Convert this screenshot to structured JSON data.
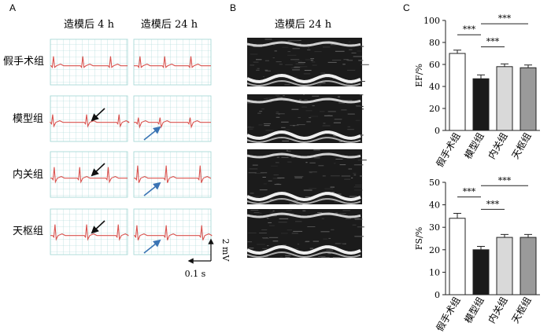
{
  "panel_a": {
    "letter": "A",
    "columns": [
      "造模后 4 h",
      "造模后 24 h"
    ],
    "rows": [
      "假手术组",
      "模型组",
      "内关组",
      "天枢组"
    ],
    "scale_voltage": "2 mV",
    "scale_time": "0.1 s",
    "colors": {
      "grid": "#9fd6d3",
      "trace": "#d9534f",
      "arrow_4h": "#111111",
      "arrow_24h": "#3a74b4"
    }
  },
  "panel_b": {
    "letter": "B",
    "title": "造模后 24 h"
  },
  "panel_c": {
    "letter": "C"
  },
  "chart_data": [
    {
      "type": "bar",
      "categories": [
        "假手术组",
        "模型组",
        "内关组",
        "天枢组"
      ],
      "values": [
        70,
        47,
        58,
        57
      ],
      "errors": [
        3,
        3.5,
        2.5,
        2.5
      ],
      "bar_colors": [
        "#ffffff",
        "#1a1a1a",
        "#d9d9d9",
        "#9a9a9a"
      ],
      "ylabel": "EF/%",
      "ylim": [
        0,
        100
      ],
      "yticks": [
        0,
        20,
        40,
        60,
        80,
        100
      ],
      "significance": [
        {
          "from": 0,
          "to": 1,
          "label": "***"
        },
        {
          "from": 1,
          "to": 2,
          "label": "***"
        },
        {
          "from": 1,
          "to": 3,
          "label": "***"
        }
      ]
    },
    {
      "type": "bar",
      "categories": [
        "假手术组",
        "模型组",
        "内关组",
        "天枢组"
      ],
      "values": [
        34,
        20,
        25.5,
        25.5
      ],
      "errors": [
        2.2,
        1.5,
        1.3,
        1.3
      ],
      "bar_colors": [
        "#ffffff",
        "#1a1a1a",
        "#d9d9d9",
        "#9a9a9a"
      ],
      "ylabel": "FS/%",
      "ylim": [
        0,
        50
      ],
      "yticks": [
        0,
        10,
        20,
        30,
        40,
        50
      ],
      "significance": [
        {
          "from": 0,
          "to": 1,
          "label": "***"
        },
        {
          "from": 1,
          "to": 2,
          "label": "***"
        },
        {
          "from": 1,
          "to": 3,
          "label": "***"
        }
      ]
    }
  ]
}
